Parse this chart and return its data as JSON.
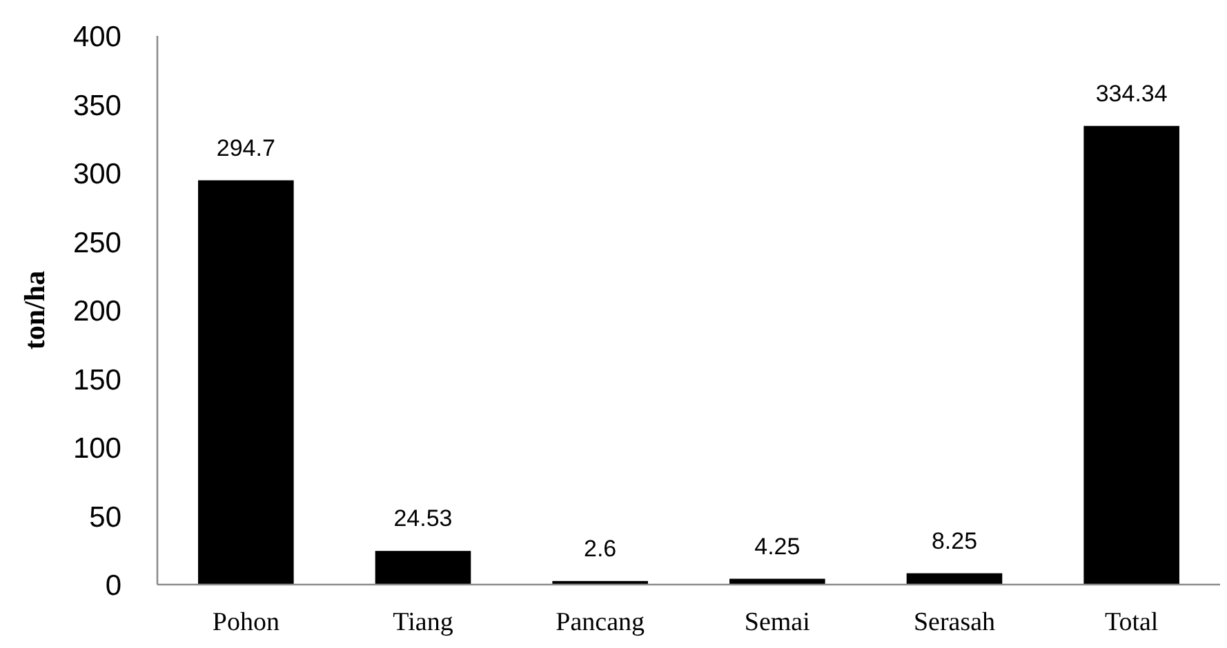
{
  "chart_data": {
    "type": "bar",
    "ylabel": "ton/ha",
    "categories": [
      "Pohon",
      "Tiang",
      "Pancang",
      "Semai",
      "Serasah",
      "Total"
    ],
    "values": [
      294.7,
      24.53,
      2.6,
      4.25,
      8.25,
      334.34
    ],
    "color": "#000000",
    "ylim": [
      0,
      400
    ],
    "yticks": [
      0,
      50,
      100,
      150,
      200,
      250,
      300,
      350,
      400
    ],
    "data_labels": true
  }
}
